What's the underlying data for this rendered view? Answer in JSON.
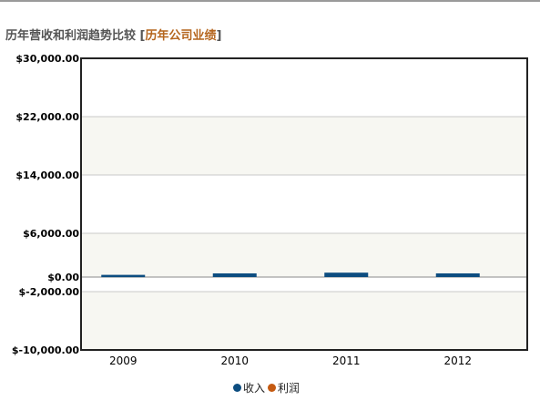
{
  "header": {
    "title": "历年营收和利润趋势比较",
    "bracket_open": "[",
    "link_label": "历年公司业绩",
    "bracket_close": "]"
  },
  "chart_data": {
    "type": "bar",
    "categories": [
      "2009",
      "2010",
      "2011",
      "2012"
    ],
    "series": [
      {
        "name": "收入",
        "values": [
          300,
          500,
          600,
          500
        ],
        "color": "#0d4d80"
      },
      {
        "name": "利润",
        "values": [
          0,
          0,
          0,
          0
        ],
        "color": "#c55a11"
      }
    ],
    "y_ticks": [
      {
        "value": 30000,
        "label": "$30,000.00"
      },
      {
        "value": 22000,
        "label": "$22,000.00"
      },
      {
        "value": 14000,
        "label": "$14,000.00"
      },
      {
        "value": 6000,
        "label": "$6,000.00"
      },
      {
        "value": 0,
        "label": "$0.00"
      },
      {
        "value": -2000,
        "label": "$-2,000.00"
      },
      {
        "value": -10000,
        "label": "$-10,000.00"
      }
    ],
    "ylim": [
      -10000,
      30000
    ],
    "grid": true,
    "legend_position": "bottom-center",
    "colors": {
      "band": "#f7f7f2",
      "grid": "#c8c8c8",
      "frame": "#222222"
    }
  }
}
